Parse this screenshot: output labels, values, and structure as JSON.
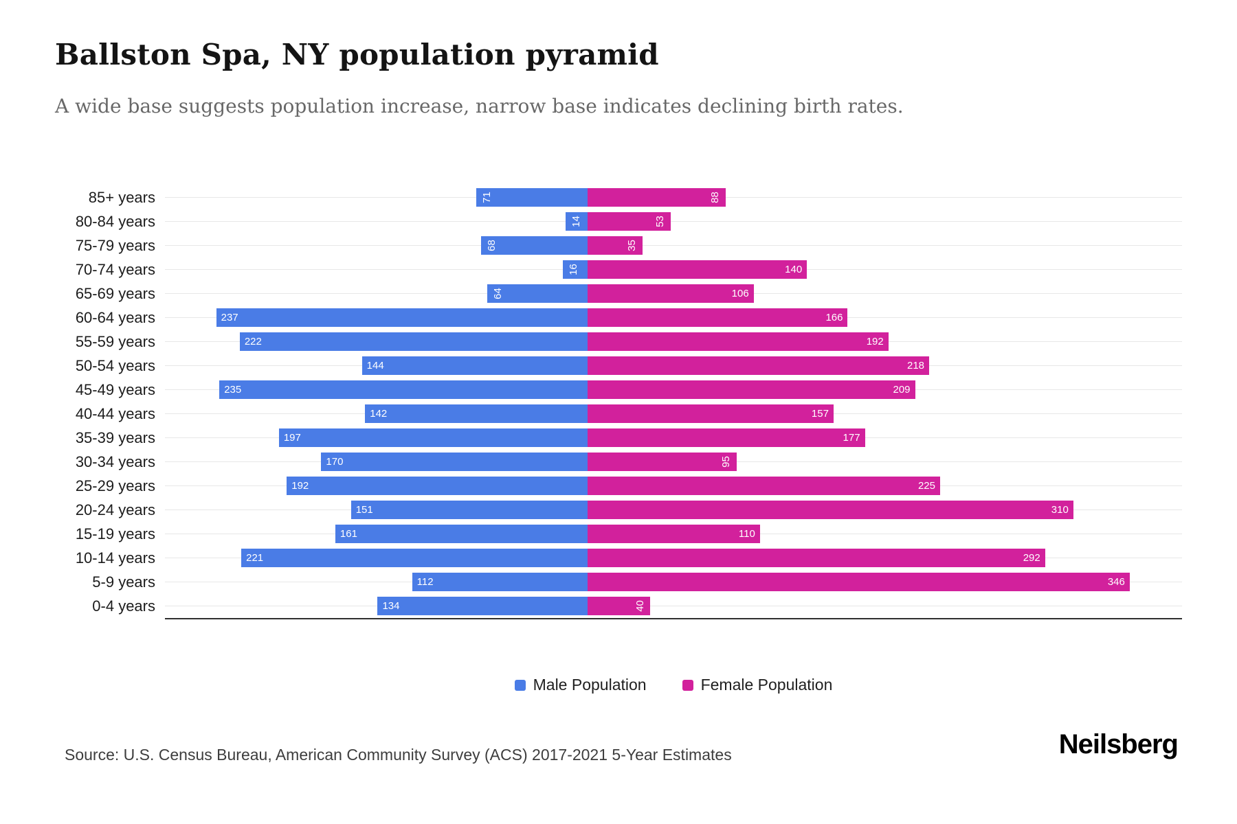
{
  "header": {
    "title": "Ballston Spa, NY population pyramid",
    "subtitle": "A wide base suggests population increase, narrow base indicates declining birth rates."
  },
  "chart_data": {
    "type": "bar",
    "variant": "population-pyramid",
    "orientation": "horizontal",
    "categories": [
      "85+ years",
      "80-84 years",
      "75-79 years",
      "70-74 years",
      "65-69 years",
      "60-64 years",
      "55-59 years",
      "50-54 years",
      "45-49 years",
      "40-44 years",
      "35-39 years",
      "30-34 years",
      "25-29 years",
      "20-24 years",
      "15-19 years",
      "10-14 years",
      "5-9 years",
      "0-4 years"
    ],
    "series": [
      {
        "name": "Male Population",
        "color": "#4a7ce6",
        "values": [
          71,
          14,
          68,
          16,
          64,
          237,
          222,
          144,
          235,
          142,
          197,
          170,
          192,
          151,
          161,
          221,
          112,
          134
        ]
      },
      {
        "name": "Female Population",
        "color": "#d2219c",
        "values": [
          88,
          53,
          35,
          140,
          106,
          166,
          192,
          218,
          209,
          157,
          177,
          95,
          225,
          310,
          110,
          292,
          346,
          40
        ]
      }
    ],
    "value_axis_max": 350,
    "grid": true,
    "legend_position": "bottom",
    "bar_label_color": "#ffffff",
    "bar_label_rotated_below_value": 100
  },
  "legend": {
    "male_label": "Male Population",
    "female_label": "Female Population"
  },
  "footer": {
    "source": "Source: U.S. Census Bureau, American Community Survey (ACS) 2017-2021 5-Year Estimates",
    "brand": "Neilsberg"
  },
  "colors": {
    "male": "#4a7ce6",
    "female": "#d2219c",
    "gridline": "#e7e7e7",
    "axis": "#2f2f2f"
  }
}
